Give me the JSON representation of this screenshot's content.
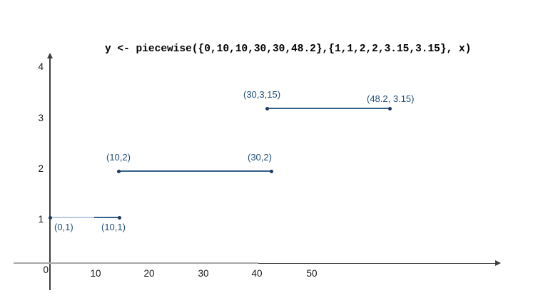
{
  "colors": {
    "segment_line": "#35618e",
    "segment_line_faded": "#b9cbe3",
    "segment_point": "#1f3864",
    "point_label": "#1f4e79",
    "axis_dark": "#3f3f3f",
    "axis_gray": "#a9a9a9",
    "tick_label": "#161616",
    "title": "#000000",
    "background": "#ffffff"
  },
  "chart_data": {
    "type": "line",
    "title": "y <- piecewise({0,10,10,30,30,48.2},{1,1,2,2,3.15,3.15}, x)",
    "xlabel": "",
    "ylabel": "",
    "xlim": [
      0,
      60
    ],
    "ylim": [
      0,
      4.3
    ],
    "grid": false,
    "legend": false,
    "origin_label": "0",
    "x_ticks": [
      "10",
      "20",
      "30",
      "40",
      "50"
    ],
    "y_ticks": [
      "1",
      "2",
      "3",
      "4"
    ],
    "segments": [
      {
        "x1": 0,
        "y1": 1,
        "x2": 10,
        "y2": 1,
        "start_label": "(0,1)",
        "end_label": "(10,1)"
      },
      {
        "x1": 10,
        "y1": 2,
        "x2": 30,
        "y2": 2,
        "start_label": "(10,2)",
        "end_label": "(30,2)"
      },
      {
        "x1": 30,
        "y1": 3.15,
        "x2": 48.2,
        "y2": 3.15,
        "start_label": "(30,3,15)",
        "end_label": "(48.2, 3.15)"
      }
    ]
  }
}
